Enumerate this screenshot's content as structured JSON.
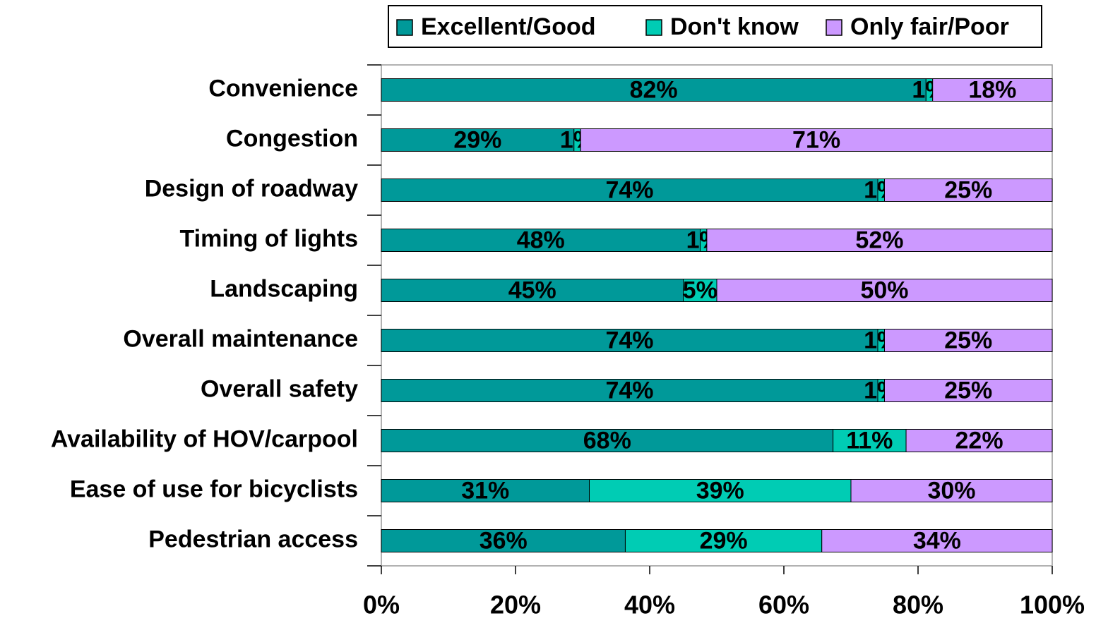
{
  "chart_data": {
    "type": "bar",
    "orientation": "horizontal",
    "stacked": "percent",
    "categories": [
      "Convenience",
      "Congestion",
      "Design of roadway",
      "Timing of lights",
      "Landscaping",
      "Overall maintenance",
      "Overall safety",
      "Availability of HOV/carpool",
      "Ease of use for bicyclists",
      "Pedestrian access"
    ],
    "series": [
      {
        "name": "Excellent/Good",
        "color": "#009999",
        "values": [
          82,
          29,
          74,
          48,
          45,
          74,
          74,
          68,
          31,
          36
        ],
        "value_labels": [
          "82%",
          "29%",
          "74%",
          "48%",
          "45%",
          "74%",
          "74%",
          "68%",
          "31%",
          "36%"
        ]
      },
      {
        "name": "Don't know",
        "color": "#00CCB4",
        "values": [
          1,
          1,
          1,
          1,
          5,
          1,
          1,
          11,
          39,
          29
        ],
        "value_labels": [
          "1%",
          "1%",
          "1%",
          "1%",
          "5%",
          "1%",
          "1%",
          "11%",
          "39%",
          "29%"
        ]
      },
      {
        "name": "Only fair/Poor",
        "color": "#CC99FF",
        "values": [
          18,
          71,
          25,
          52,
          50,
          25,
          25,
          22,
          30,
          34
        ],
        "value_labels": [
          "18%",
          "71%",
          "25%",
          "52%",
          "50%",
          "25%",
          "25%",
          "22%",
          "30%",
          "34%"
        ]
      }
    ],
    "xlim": [
      0,
      100
    ],
    "xticks": [
      {
        "value": 0,
        "label": "0%"
      },
      {
        "value": 20,
        "label": "20%"
      },
      {
        "value": 40,
        "label": "40%"
      },
      {
        "value": 60,
        "label": "60%"
      },
      {
        "value": 80,
        "label": "80%"
      },
      {
        "value": 100,
        "label": "100%"
      }
    ],
    "legend": "top"
  }
}
